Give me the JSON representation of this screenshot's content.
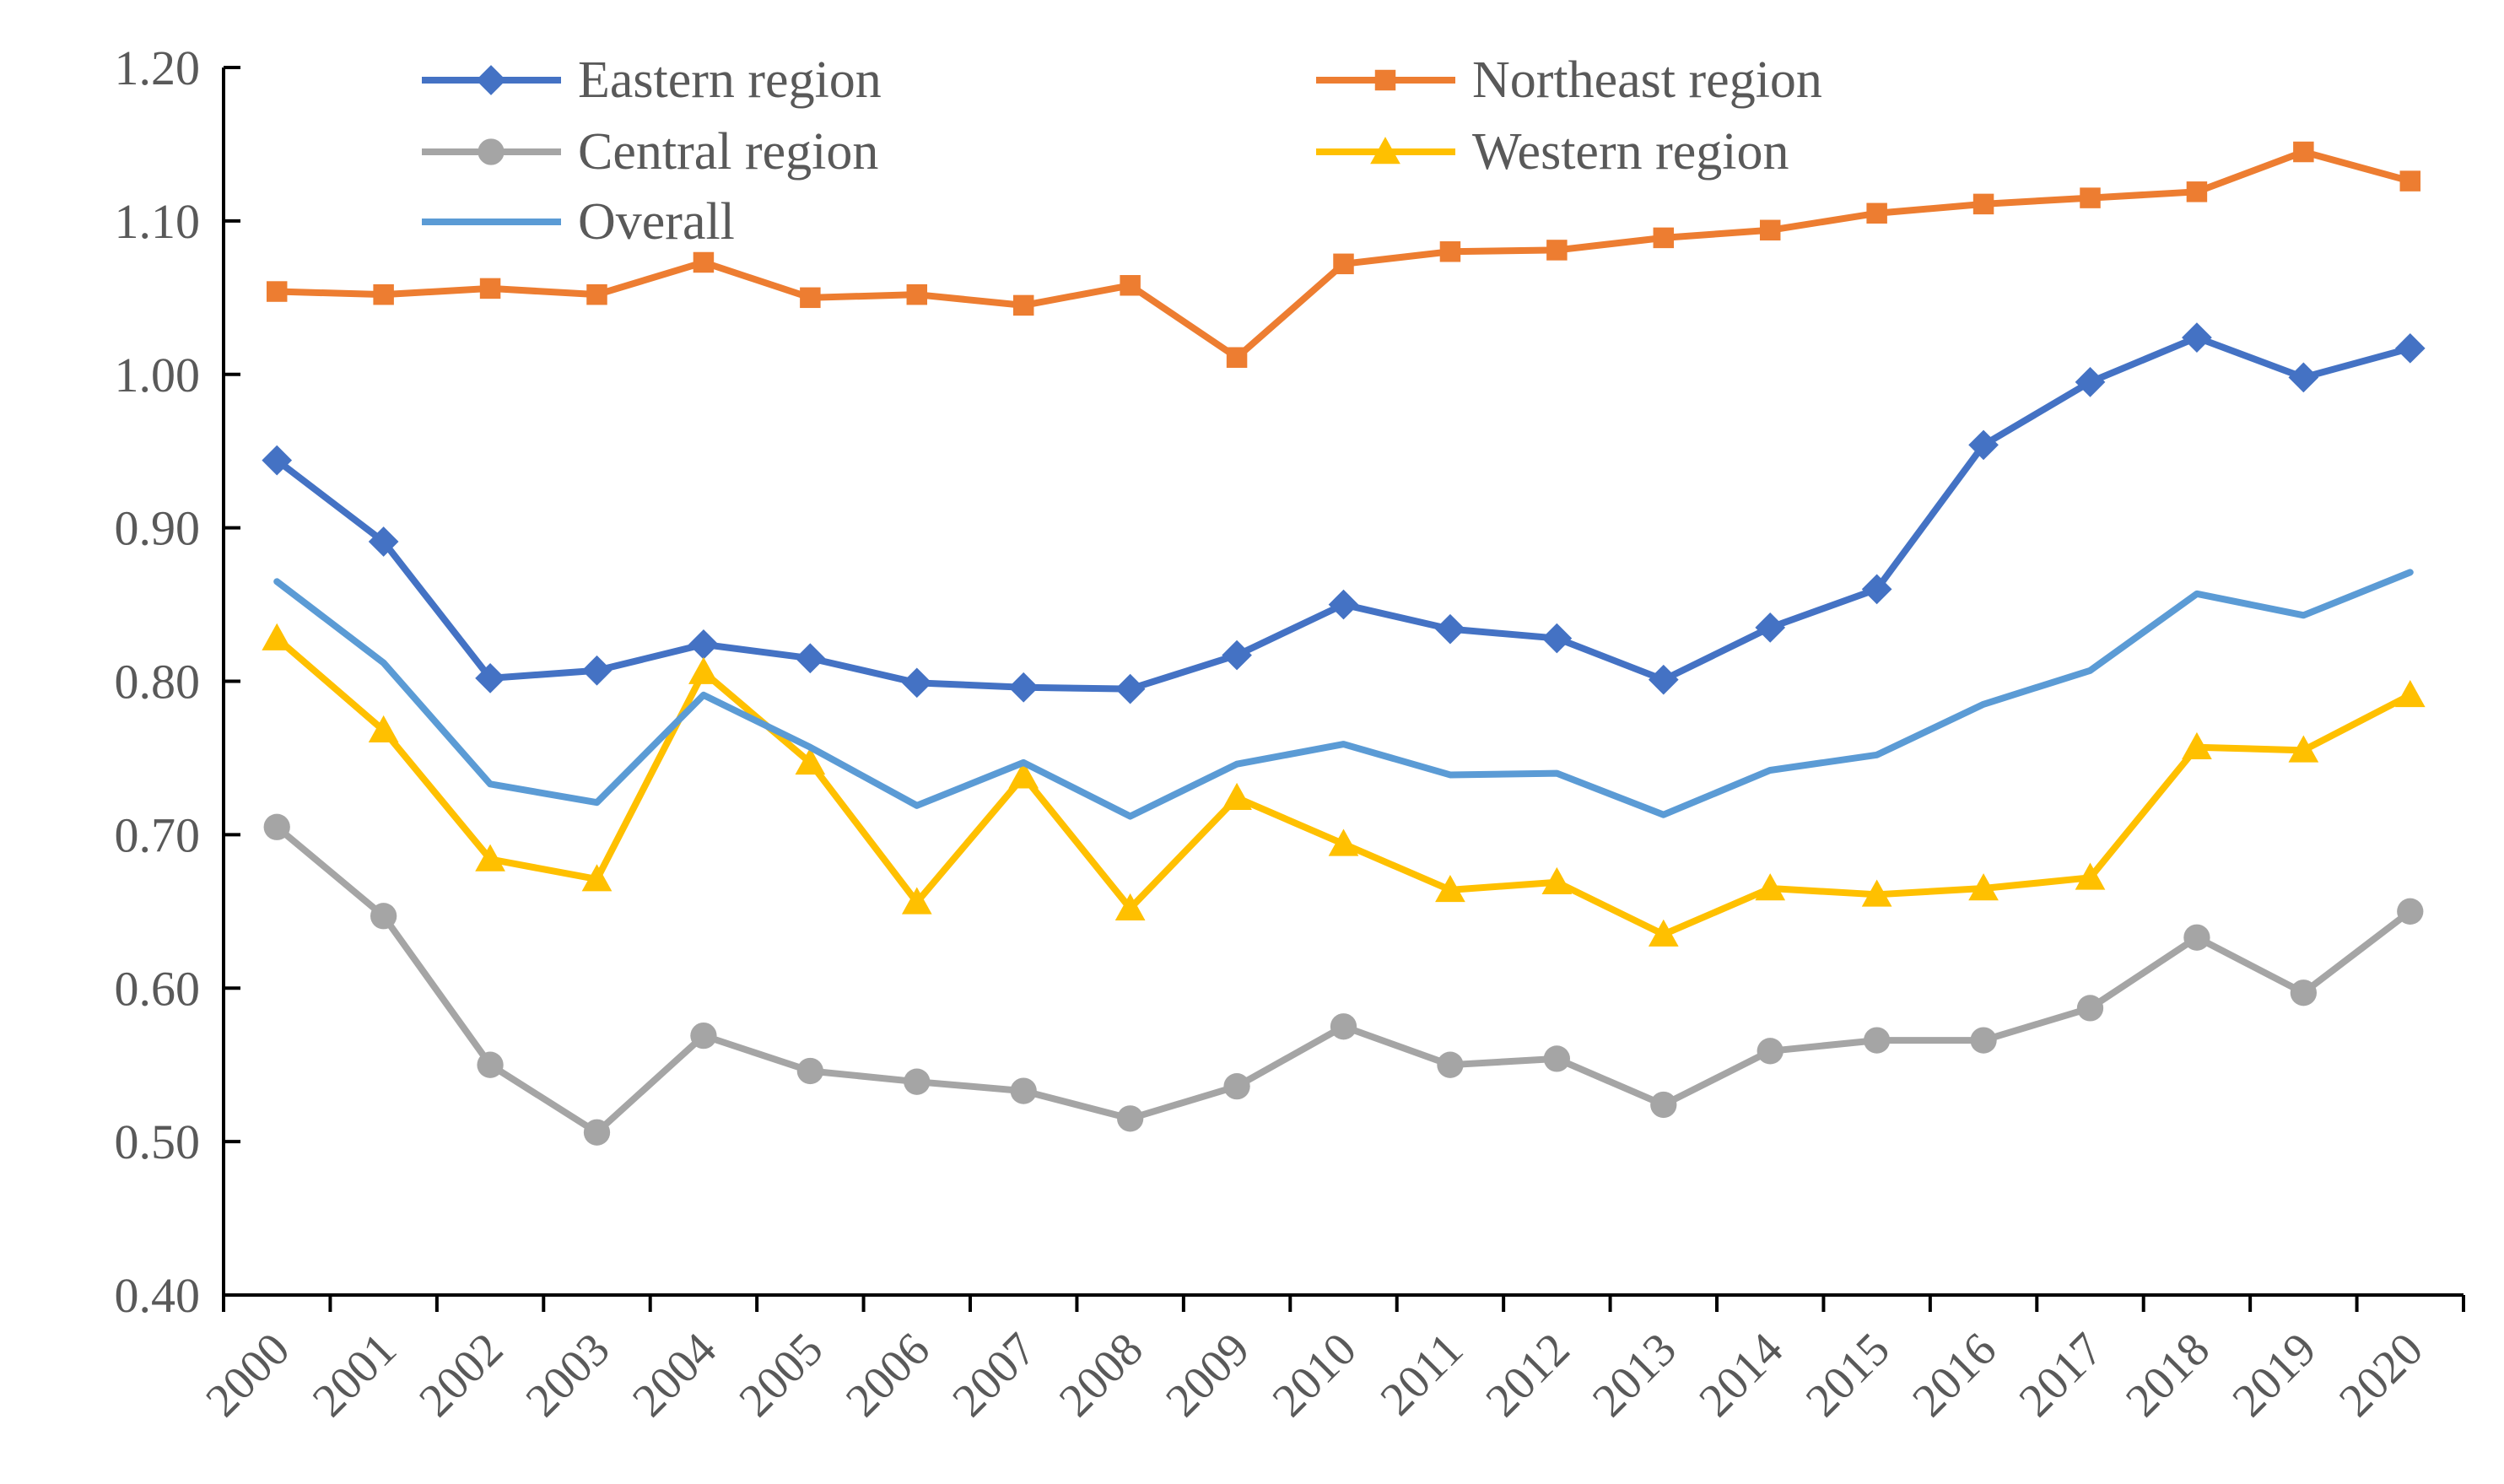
{
  "chart_data": {
    "type": "line",
    "title": "",
    "xlabel": "",
    "ylabel": "",
    "categories": [
      "2000",
      "2001",
      "2002",
      "2003",
      "2004",
      "2005",
      "2006",
      "2007",
      "2008",
      "2009",
      "2010",
      "2011",
      "2012",
      "2013",
      "2014",
      "2015",
      "2016",
      "2017",
      "2018",
      "2019",
      "2020"
    ],
    "ylim": [
      0.4,
      1.2
    ],
    "yticks": [
      "0.40",
      "0.50",
      "0.60",
      "0.70",
      "0.80",
      "0.90",
      "1.00",
      "1.10",
      "1.20"
    ],
    "grid": false,
    "legend_position": "top",
    "series": [
      {
        "name": "Eastern region",
        "marker": "diamond",
        "color": "#4472C4",
        "values": [
          0.944,
          0.891,
          0.802,
          0.807,
          0.824,
          0.815,
          0.799,
          0.796,
          0.795,
          0.817,
          0.85,
          0.834,
          0.828,
          0.801,
          0.835,
          0.86,
          0.954,
          0.995,
          1.024,
          0.998,
          1.017
        ]
      },
      {
        "name": "Northeast region",
        "marker": "square",
        "color": "#ED7D31",
        "values": [
          1.054,
          1.052,
          1.056,
          1.052,
          1.073,
          1.05,
          1.052,
          1.045,
          1.058,
          1.011,
          1.072,
          1.08,
          1.081,
          1.089,
          1.094,
          1.105,
          1.111,
          1.115,
          1.119,
          1.145,
          1.126
        ]
      },
      {
        "name": "Central region",
        "marker": "circle",
        "color": "#A5A5A5",
        "values": [
          0.705,
          0.647,
          0.55,
          0.506,
          0.569,
          0.546,
          0.539,
          0.533,
          0.515,
          0.536,
          0.575,
          0.55,
          0.554,
          0.524,
          0.559,
          0.566,
          0.566,
          0.587,
          0.633,
          0.597,
          0.65
        ]
      },
      {
        "name": "Western region",
        "marker": "triangle",
        "color": "#FFC000",
        "values": [
          0.828,
          0.768,
          0.684,
          0.671,
          0.806,
          0.747,
          0.656,
          0.738,
          0.652,
          0.724,
          0.694,
          0.664,
          0.669,
          0.635,
          0.665,
          0.661,
          0.665,
          0.672,
          0.757,
          0.755,
          0.791
        ]
      },
      {
        "name": "Overall",
        "marker": "none",
        "color": "#5B9BD5",
        "values": [
          0.865,
          0.812,
          0.733,
          0.721,
          0.791,
          0.757,
          0.719,
          0.747,
          0.712,
          0.746,
          0.759,
          0.739,
          0.74,
          0.713,
          0.742,
          0.752,
          0.785,
          0.807,
          0.857,
          0.843,
          0.871
        ]
      }
    ]
  }
}
